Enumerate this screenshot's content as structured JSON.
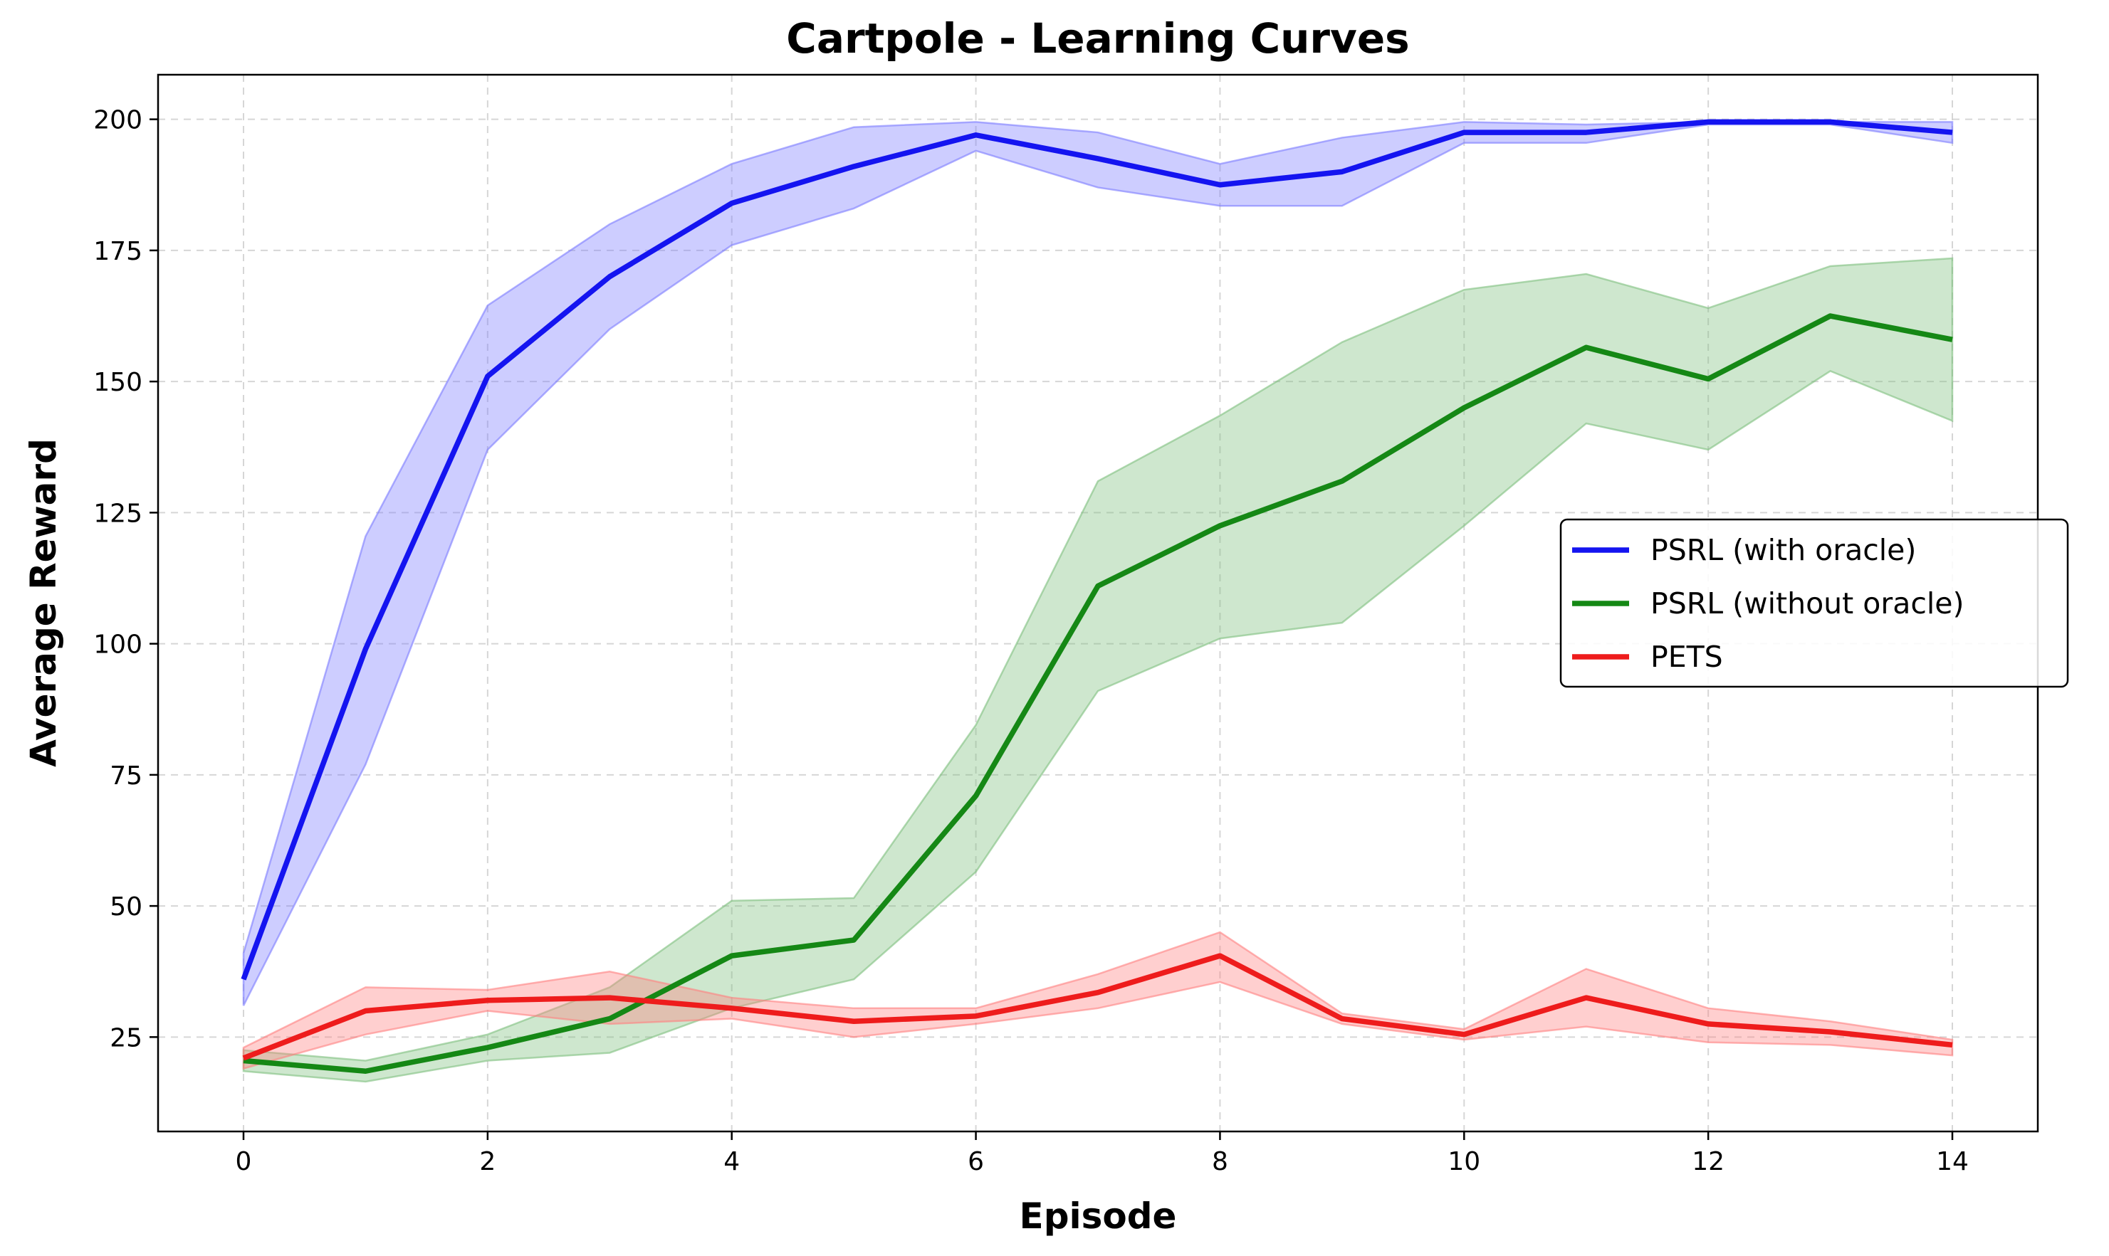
{
  "chart_data": {
    "type": "line",
    "title": "Cartpole - Learning Curves",
    "xlabel": "Episode",
    "ylabel": "Average Reward",
    "xlim": [
      -0.7,
      14.7
    ],
    "ylim": [
      7,
      208.5
    ],
    "xticks": [
      0,
      2,
      4,
      6,
      8,
      10,
      12,
      14
    ],
    "yticks": [
      25,
      50,
      75,
      100,
      125,
      150,
      175,
      200
    ],
    "grid": true,
    "legend_position": "center-right",
    "x": [
      0,
      1,
      2,
      3,
      4,
      5,
      6,
      7,
      8,
      9,
      10,
      11,
      12,
      13,
      14
    ],
    "series": [
      {
        "name": "PSRL (with oracle)",
        "color": "#1414f0",
        "values": [
          36,
          99,
          151,
          170,
          184,
          191,
          197,
          192.5,
          187.5,
          190,
          197.5,
          197.5,
          199.5,
          199.5,
          197.5
        ],
        "lower": [
          31,
          77,
          137,
          160,
          176,
          183,
          194,
          187,
          183.5,
          183.5,
          195.5,
          195.5,
          199,
          199,
          195.5
        ],
        "upper": [
          41,
          120.5,
          164.5,
          180,
          191.5,
          198.5,
          199.5,
          197.5,
          191.5,
          196.5,
          199.5,
          199,
          199.5,
          199.5,
          199.5
        ],
        "band_color": "#7b7bff"
      },
      {
        "name": "PSRL (without oracle)",
        "color": "#158815",
        "values": [
          20.5,
          18.5,
          23,
          28.5,
          40.5,
          43.5,
          71,
          111,
          122.5,
          131,
          145,
          156.5,
          150.5,
          162.5,
          158
        ],
        "lower": [
          18.5,
          16.5,
          20.5,
          22,
          30.5,
          36,
          56.5,
          91,
          101,
          104,
          122.5,
          142,
          137,
          152,
          142.5
        ],
        "upper": [
          22.5,
          20.5,
          25.5,
          34.5,
          51,
          51.5,
          84.5,
          131,
          143.5,
          157.5,
          167.5,
          170.5,
          164,
          172,
          173.5
        ],
        "band_color": "#7fbf7f"
      },
      {
        "name": "PETS",
        "color": "#ee1c1c",
        "values": [
          21,
          30,
          32,
          32.5,
          30.5,
          28,
          29,
          33.5,
          40.5,
          28.5,
          25.5,
          32.5,
          27.5,
          26,
          23.5
        ],
        "lower": [
          19,
          25.5,
          30,
          27.5,
          28.5,
          25,
          27.5,
          30.5,
          35.5,
          27.5,
          24.5,
          27,
          24,
          23.5,
          21.5
        ],
        "upper": [
          23,
          34.5,
          34,
          37.5,
          32.5,
          30.5,
          30.5,
          37,
          45,
          29.5,
          26.5,
          38,
          30.5,
          28,
          24.5
        ],
        "band_color": "#ff8080"
      }
    ]
  }
}
